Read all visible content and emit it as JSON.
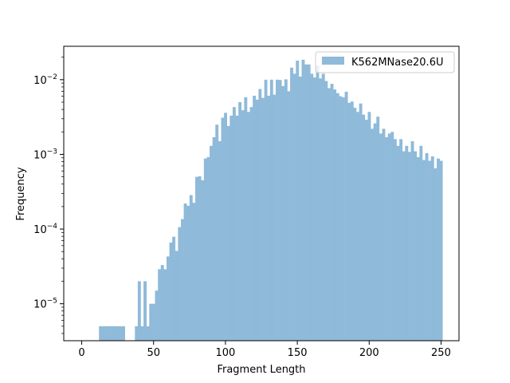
{
  "chart_data": {
    "type": "bar",
    "subtype": "histogram",
    "xlabel": "Fragment Length",
    "ylabel": "Frequency",
    "xlim": [
      -12.5,
      262.5
    ],
    "ylim": [
      3.2e-06,
      0.028
    ],
    "yscale": "log",
    "x_ticks": [
      0,
      50,
      100,
      150,
      200,
      250
    ],
    "y_ticks": [
      {
        "value": 1e-05,
        "base": "10",
        "exp": "−5"
      },
      {
        "value": 0.0001,
        "base": "10",
        "exp": "−4"
      },
      {
        "value": 0.001,
        "base": "10",
        "exp": "−3"
      },
      {
        "value": 0.01,
        "base": "10",
        "exp": "−2"
      }
    ],
    "grid": false,
    "legend": {
      "placement": "top-right",
      "entries": [
        "K562MNase20.6U"
      ]
    },
    "series": [
      {
        "name": "K562MNase20.6U",
        "color": "#8fbad9",
        "bin_width": 2,
        "bins": [
          [
            12,
            5e-06
          ],
          [
            14,
            5e-06
          ],
          [
            16,
            5e-06
          ],
          [
            18,
            5e-06
          ],
          [
            20,
            5e-06
          ],
          [
            22,
            5e-06
          ],
          [
            24,
            5e-06
          ],
          [
            26,
            5e-06
          ],
          [
            28,
            5e-06
          ],
          [
            37,
            5e-06
          ],
          [
            39,
            2e-05
          ],
          [
            41,
            5e-06
          ],
          [
            43,
            2e-05
          ],
          [
            45,
            5e-06
          ],
          [
            47,
            1e-05
          ],
          [
            49,
            1e-05
          ],
          [
            51,
            1.5e-05
          ],
          [
            53,
            2.9e-05
          ],
          [
            55,
            3.3e-05
          ],
          [
            57,
            2.9e-05
          ],
          [
            59,
            4.3e-05
          ],
          [
            61,
            6.6e-05
          ],
          [
            63,
            7.9e-05
          ],
          [
            65,
            5.1e-05
          ],
          [
            67,
            0.000106
          ],
          [
            69,
            0.000136
          ],
          [
            71,
            0.00022
          ],
          [
            73,
            0.000205
          ],
          [
            75,
            0.000285
          ],
          [
            77,
            0.000225
          ],
          [
            79,
            0.0005
          ],
          [
            81,
            0.00051
          ],
          [
            83,
            0.00045
          ],
          [
            85,
            0.00088
          ],
          [
            87,
            0.00092
          ],
          [
            89,
            0.0013
          ],
          [
            91,
            0.0017
          ],
          [
            93,
            0.0025
          ],
          [
            95,
            0.0015
          ],
          [
            97,
            0.0031
          ],
          [
            99,
            0.0036
          ],
          [
            101,
            0.0024
          ],
          [
            103,
            0.0033
          ],
          [
            105,
            0.0043
          ],
          [
            107,
            0.0033
          ],
          [
            109,
            0.005
          ],
          [
            111,
            0.0039
          ],
          [
            113,
            0.0058
          ],
          [
            115,
            0.0037
          ],
          [
            117,
            0.0043
          ],
          [
            119,
            0.0061
          ],
          [
            121,
            0.0054
          ],
          [
            123,
            0.0075
          ],
          [
            125,
            0.0057
          ],
          [
            127,
            0.01
          ],
          [
            129,
            0.0061
          ],
          [
            131,
            0.01
          ],
          [
            133,
            0.0063
          ],
          [
            135,
            0.01
          ],
          [
            137,
            0.0099
          ],
          [
            139,
            0.0082
          ],
          [
            141,
            0.0101
          ],
          [
            143,
            0.007
          ],
          [
            145,
            0.0145
          ],
          [
            147,
            0.012
          ],
          [
            149,
            0.018
          ],
          [
            151,
            0.011
          ],
          [
            153,
            0.0185
          ],
          [
            155,
            0.016
          ],
          [
            157,
            0.016
          ],
          [
            159,
            0.012
          ],
          [
            161,
            0.0107
          ],
          [
            163,
            0.0155
          ],
          [
            165,
            0.0104
          ],
          [
            167,
            0.012
          ],
          [
            169,
            0.0096
          ],
          [
            171,
            0.0077
          ],
          [
            173,
            0.0088
          ],
          [
            175,
            0.0074
          ],
          [
            177,
            0.0066
          ],
          [
            179,
            0.006
          ],
          [
            181,
            0.0058
          ],
          [
            183,
            0.0069
          ],
          [
            185,
            0.0049
          ],
          [
            187,
            0.0051
          ],
          [
            189,
            0.0042
          ],
          [
            191,
            0.0037
          ],
          [
            193,
            0.0048
          ],
          [
            195,
            0.0034
          ],
          [
            197,
            0.0029
          ],
          [
            199,
            0.0037
          ],
          [
            201,
            0.0022
          ],
          [
            203,
            0.0026
          ],
          [
            205,
            0.0032
          ],
          [
            207,
            0.0019
          ],
          [
            209,
            0.0022
          ],
          [
            211,
            0.0017
          ],
          [
            213,
            0.0019
          ],
          [
            215,
            0.002
          ],
          [
            217,
            0.0016
          ],
          [
            219,
            0.0013
          ],
          [
            221,
            0.0016
          ],
          [
            223,
            0.0011
          ],
          [
            225,
            0.0013
          ],
          [
            227,
            0.00108
          ],
          [
            229,
            0.0015
          ],
          [
            231,
            0.0011
          ],
          [
            233,
            0.00092
          ],
          [
            235,
            0.0013
          ],
          [
            237,
            0.00084
          ],
          [
            239,
            0.00104
          ],
          [
            241,
            0.00082
          ],
          [
            243,
            0.00094
          ],
          [
            245,
            0.00065
          ],
          [
            247,
            0.00088
          ],
          [
            249,
            0.00082
          ]
        ]
      }
    ]
  }
}
